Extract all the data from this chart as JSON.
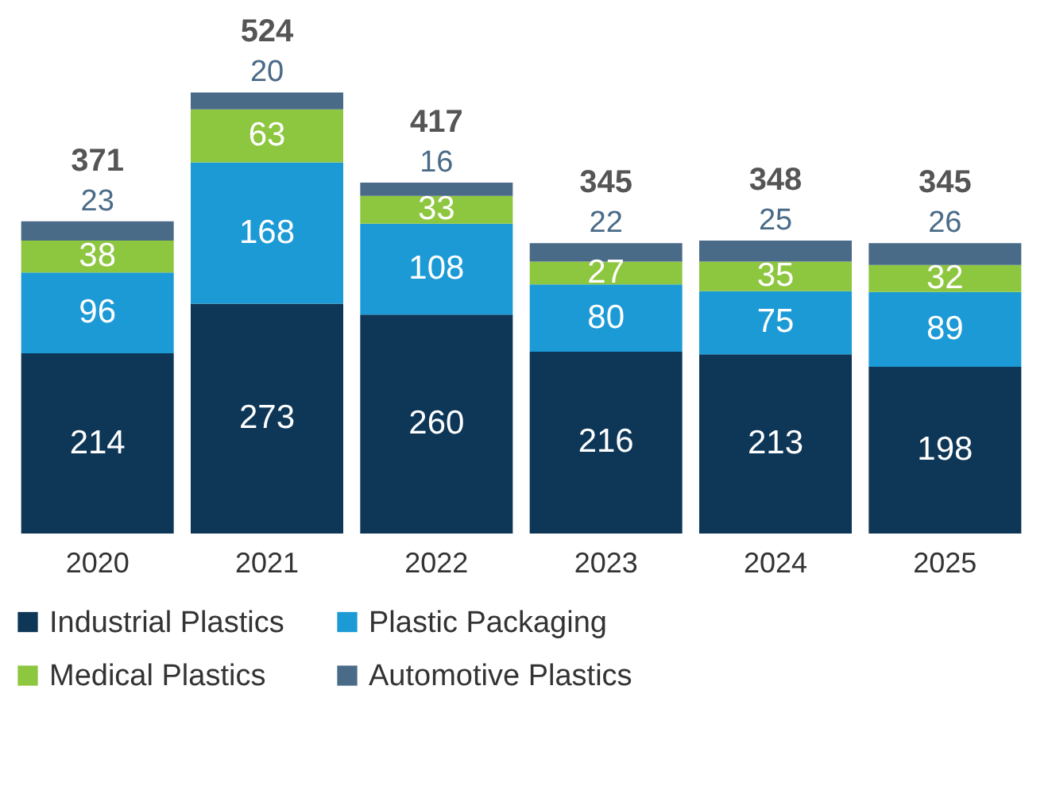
{
  "chart_data": {
    "type": "bar",
    "stacked": true,
    "data_labels": true,
    "legend": "bottom",
    "categories": [
      "2020",
      "2021",
      "2022",
      "2023",
      "2024",
      "2025"
    ],
    "series": [
      {
        "name": "Industrial Plastics",
        "color": "#0d3657",
        "values": [
          214,
          273,
          260,
          216,
          213,
          198
        ]
      },
      {
        "name": "Plastic Packaging",
        "color": "#1c9ad6",
        "values": [
          96,
          168,
          108,
          80,
          75,
          89
        ]
      },
      {
        "name": "Medical Plastics",
        "color": "#8dc63f",
        "values": [
          38,
          63,
          33,
          27,
          35,
          32
        ]
      },
      {
        "name": "Automotive Plastics",
        "color": "#4a6b87",
        "values": [
          23,
          20,
          16,
          22,
          25,
          26
        ]
      }
    ],
    "totals": [
      "371",
      "524",
      "417",
      "345",
      "348",
      "345"
    ]
  }
}
